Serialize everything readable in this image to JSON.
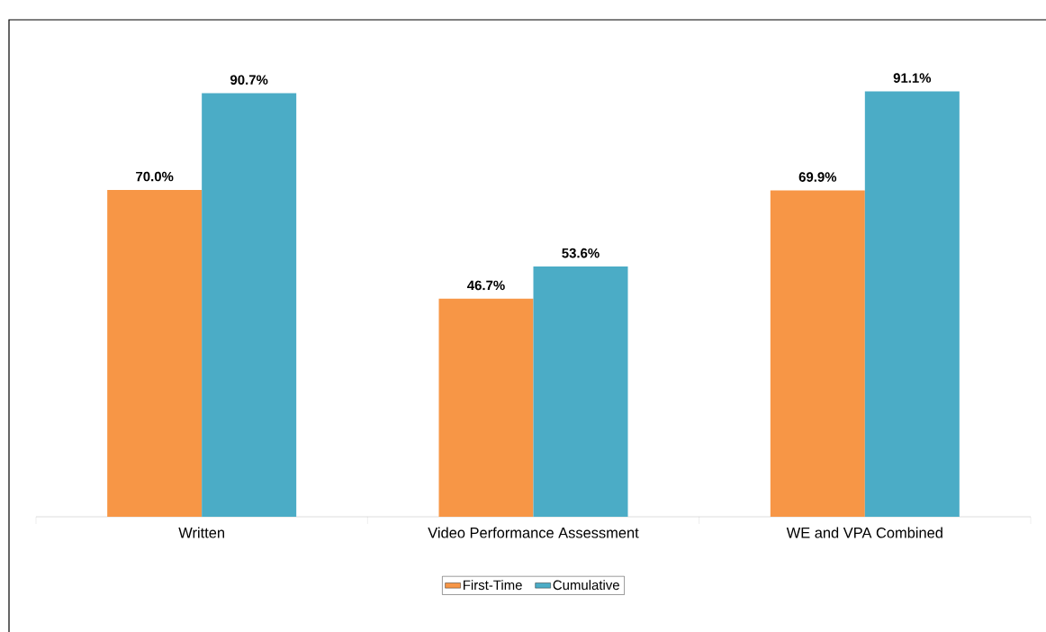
{
  "chart_data": {
    "type": "bar",
    "categories": [
      "Written",
      "Video Performance Assessment",
      "WE and VPA Combined"
    ],
    "series": [
      {
        "name": "First-Time",
        "color": "#f79646",
        "values": [
          70.0,
          46.7,
          69.9
        ],
        "value_labels": [
          "70.0%",
          "46.7%",
          "69.9%"
        ]
      },
      {
        "name": "Cumulative",
        "color": "#4bacc6",
        "values": [
          90.7,
          53.6,
          91.1
        ],
        "value_labels": [
          "90.7%",
          "53.6%",
          "91.1%"
        ]
      }
    ],
    "legend": "bottom"
  }
}
